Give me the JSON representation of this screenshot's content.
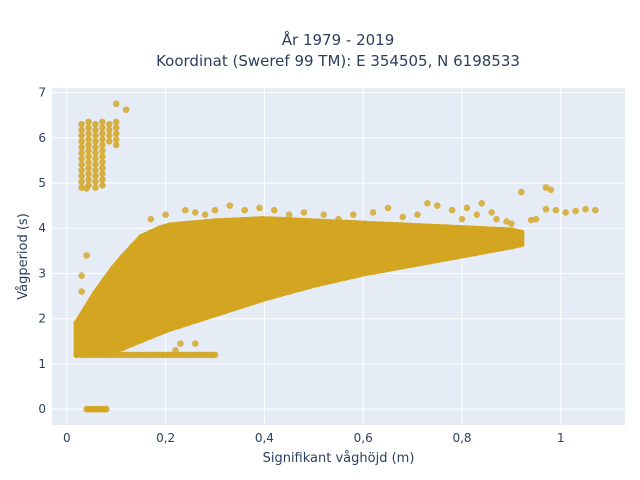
{
  "chart_data": {
    "type": "scatter",
    "title_line1": "År 1979 - 2019",
    "title_line2": "Koordinat (Sweref 99 TM): E 354505, N 6198533",
    "xlabel": "Signifikant våghöjd (m)",
    "ylabel": "Vågperiod (s)",
    "xlim": [
      -0.03,
      1.13
    ],
    "ylim": [
      -0.35,
      7.1
    ],
    "x_ticks": [
      0,
      0.2,
      0.4,
      0.6,
      0.8,
      1
    ],
    "x_tick_labels": [
      "0",
      "0,2",
      "0,4",
      "0,6",
      "0,8",
      "1"
    ],
    "y_ticks": [
      0,
      1,
      2,
      3,
      4,
      5,
      6,
      7
    ],
    "y_tick_labels": [
      "0",
      "1",
      "2",
      "3",
      "4",
      "5",
      "6",
      "7"
    ],
    "grid": true,
    "marker_color": "#D4A520",
    "background_color": "#E5ECF6",
    "grid_color": "#FFFFFF",
    "main_cloud": {
      "x_start": 0.02,
      "x_end": 0.92,
      "lower_edge": [
        [
          0.02,
          1.2
        ],
        [
          0.1,
          1.3
        ],
        [
          0.2,
          1.75
        ],
        [
          0.3,
          2.1
        ],
        [
          0.4,
          2.45
        ],
        [
          0.5,
          2.75
        ],
        [
          0.6,
          3.0
        ],
        [
          0.7,
          3.2
        ],
        [
          0.8,
          3.4
        ],
        [
          0.9,
          3.6
        ],
        [
          0.92,
          3.65
        ]
      ],
      "upper_edge": [
        [
          0.02,
          1.9
        ],
        [
          0.06,
          2.6
        ],
        [
          0.1,
          3.2
        ],
        [
          0.15,
          3.8
        ],
        [
          0.2,
          4.05
        ],
        [
          0.3,
          4.15
        ],
        [
          0.4,
          4.2
        ],
        [
          0.5,
          4.15
        ],
        [
          0.6,
          4.1
        ],
        [
          0.7,
          4.05
        ],
        [
          0.8,
          4.0
        ],
        [
          0.9,
          3.95
        ],
        [
          0.92,
          3.9
        ]
      ]
    },
    "swell_cluster": {
      "x_range": [
        0.03,
        0.1
      ],
      "y_range": [
        4.9,
        6.3
      ]
    },
    "low_period_band": {
      "x_range": [
        0.03,
        0.3
      ],
      "y": 1.2
    },
    "zero_band": {
      "x_range": [
        0.04,
        0.08
      ],
      "y": 0
    },
    "outliers": [
      {
        "x": 0.1,
        "y": 6.75
      },
      {
        "x": 0.12,
        "y": 6.62
      },
      {
        "x": 0.04,
        "y": 4.88
      },
      {
        "x": 0.04,
        "y": 3.4
      },
      {
        "x": 0.03,
        "y": 2.95
      },
      {
        "x": 0.03,
        "y": 2.6
      },
      {
        "x": 0.23,
        "y": 1.45
      },
      {
        "x": 0.26,
        "y": 1.45
      },
      {
        "x": 0.22,
        "y": 1.3
      },
      {
        "x": 0.97,
        "y": 4.9
      },
      {
        "x": 0.98,
        "y": 4.85
      },
      {
        "x": 0.92,
        "y": 4.8
      },
      {
        "x": 1.07,
        "y": 4.4
      },
      {
        "x": 1.05,
        "y": 4.42
      },
      {
        "x": 1.03,
        "y": 4.38
      },
      {
        "x": 1.01,
        "y": 4.35
      },
      {
        "x": 0.99,
        "y": 4.4
      },
      {
        "x": 0.97,
        "y": 4.42
      },
      {
        "x": 0.95,
        "y": 4.2
      },
      {
        "x": 0.94,
        "y": 4.18
      },
      {
        "x": 0.9,
        "y": 4.1
      },
      {
        "x": 0.89,
        "y": 4.15
      },
      {
        "x": 0.87,
        "y": 4.2
      },
      {
        "x": 0.86,
        "y": 4.35
      },
      {
        "x": 0.84,
        "y": 4.55
      },
      {
        "x": 0.83,
        "y": 4.3
      },
      {
        "x": 0.81,
        "y": 4.45
      },
      {
        "x": 0.8,
        "y": 4.2
      },
      {
        "x": 0.78,
        "y": 4.4
      },
      {
        "x": 0.75,
        "y": 4.5
      },
      {
        "x": 0.73,
        "y": 4.55
      },
      {
        "x": 0.71,
        "y": 4.3
      },
      {
        "x": 0.68,
        "y": 4.25
      },
      {
        "x": 0.65,
        "y": 4.45
      },
      {
        "x": 0.62,
        "y": 4.35
      },
      {
        "x": 0.58,
        "y": 4.3
      },
      {
        "x": 0.55,
        "y": 4.2
      },
      {
        "x": 0.52,
        "y": 4.3
      },
      {
        "x": 0.48,
        "y": 4.35
      },
      {
        "x": 0.45,
        "y": 4.3
      },
      {
        "x": 0.42,
        "y": 4.4
      },
      {
        "x": 0.39,
        "y": 4.45
      },
      {
        "x": 0.36,
        "y": 4.4
      },
      {
        "x": 0.33,
        "y": 4.5
      },
      {
        "x": 0.3,
        "y": 4.4
      },
      {
        "x": 0.28,
        "y": 4.3
      },
      {
        "x": 0.26,
        "y": 4.35
      },
      {
        "x": 0.24,
        "y": 4.4
      },
      {
        "x": 0.2,
        "y": 4.3
      },
      {
        "x": 0.17,
        "y": 4.2
      },
      {
        "x": 0.31,
        "y": 2.6
      },
      {
        "x": 0.47,
        "y": 2.95
      },
      {
        "x": 0.46,
        "y": 3.0
      },
      {
        "x": 0.36,
        "y": 2.9
      },
      {
        "x": 0.69,
        "y": 3.2
      },
      {
        "x": 0.06,
        "y": 2.1
      }
    ]
  }
}
